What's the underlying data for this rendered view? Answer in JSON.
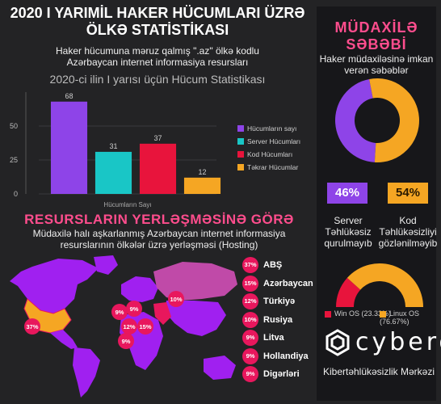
{
  "header": {
    "title_line1": "2020 I YARIMİL HAKER HÜCUMLARI ÜZRƏ",
    "title_line2": "ÖLKƏ STATİSTİKASI",
    "subtitle_line1": "Haker hücumuna məruz qalmış \".az\" ölkə kodlu",
    "subtitle_line2": "Azərbaycan internet informasiya resursları"
  },
  "chart_data": [
    {
      "type": "bar",
      "title": "2020-ci ilin I yarısı üçün Hücum Statistikası",
      "xlabel": "Hücumların Sayı",
      "ylabel": "",
      "ylim": [
        0,
        75
      ],
      "yticks": [
        "0",
        "25",
        "50"
      ],
      "categories": [
        "Hücumların sayı",
        "Server Hücumları",
        "Kod Hücumları",
        "Təkrar Hücumlar"
      ],
      "values": [
        68,
        31,
        37,
        12
      ],
      "value_labels": [
        "68",
        "31",
        "37",
        "12"
      ],
      "colors": [
        "#8e44e8",
        "#19c6c6",
        "#e8143c",
        "#f5a623"
      ],
      "legend": "right"
    },
    {
      "type": "pie",
      "title": "",
      "labels": [
        "Server Təhlükəsiz qurulmayıb",
        "Kod Təhlükəsizliyi gözlənilməyib"
      ],
      "values": [
        46,
        54
      ],
      "value_labels": [
        "46%",
        "54%"
      ],
      "colors": [
        "#8e44e8",
        "#f5a623"
      ]
    },
    {
      "type": "pie",
      "title": "",
      "labels": [
        "Win OS (23.33%)",
        "Linux OS (76.67%)"
      ],
      "values": [
        23.33,
        76.67
      ],
      "colors": [
        "#e8143c",
        "#f5a623"
      ],
      "legend": "bottom"
    }
  ],
  "cause": {
    "title_line1": "MÜDAXİLƏ",
    "title_line2": "SƏBƏBİ",
    "subtitle_line1": "Haker müdaxiləsinə imkan",
    "subtitle_line2": "verən səbəblər",
    "left_pct": "46%",
    "right_pct": "54%",
    "left_caption": [
      "Server",
      "Təhlükəsiz",
      "qurulmayıb"
    ],
    "right_caption": [
      "Kod",
      "Təhlükəsizliyi",
      "gözlənilməyib"
    ]
  },
  "hosting": {
    "title": "RESURSLARIN YERLƏŞMƏSİNƏ GÖRƏ",
    "subtitle_line1": "Müdaxilə halı aşkarlanmış Azərbaycan internet informasiya",
    "subtitle_line2": "resurslarının ölkələr üzrə yerləşməsi (Hosting)",
    "countries": [
      {
        "pct": "37%",
        "name": "ABŞ"
      },
      {
        "pct": "15%",
        "name": "Azərbaycan"
      },
      {
        "pct": "12%",
        "name": "Türkiyə"
      },
      {
        "pct": "10%",
        "name": "Rusiya"
      },
      {
        "pct": "9%",
        "name": "Litva"
      },
      {
        "pct": "9%",
        "name": "Hollandiya"
      },
      {
        "pct": "9%",
        "name": "Digərləri"
      }
    ],
    "map_labels": [
      "37%",
      "10%",
      "9%",
      "9%",
      "12%",
      "15%",
      "9%"
    ]
  },
  "brand": {
    "logo": "cybero",
    "tagline": "Kibertəhlükəsizlik Mərkəzi"
  },
  "colors": {
    "accent": "#ff4d8d",
    "background": "#232325",
    "panel": "#17171a",
    "map_purple": "#a020f0",
    "map_highlight": "#e8175d"
  }
}
